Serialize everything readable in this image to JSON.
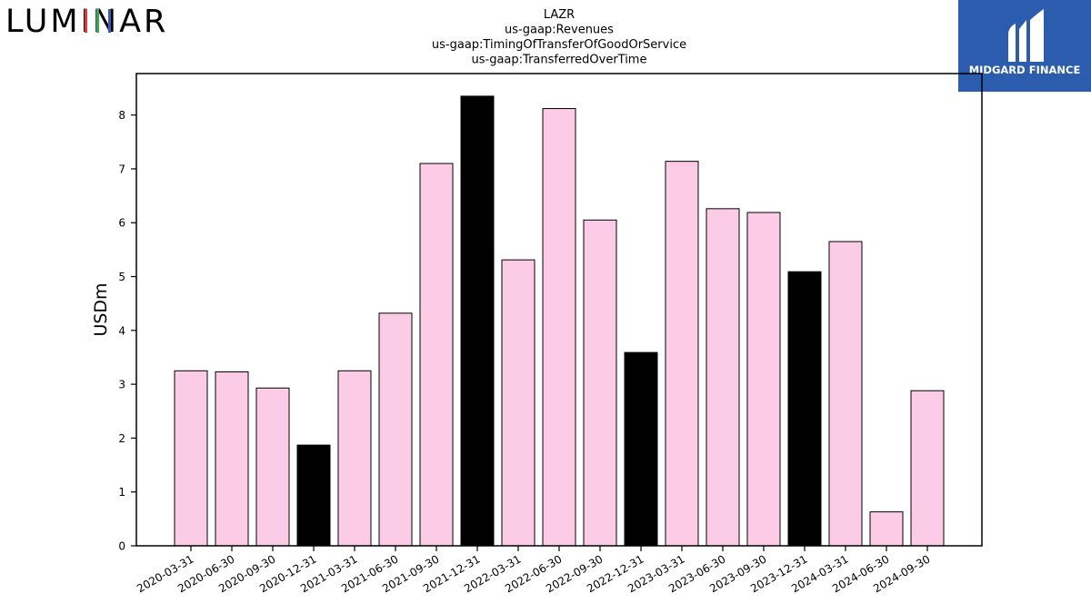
{
  "brand": {
    "left_logo_text": "LUMINAR",
    "right_logo_text": "MIDGARD FINANCE",
    "right_logo_bg": "#2b5cad"
  },
  "chart_data": {
    "type": "bar",
    "title": [
      "LAZR",
      "us-gaap:Revenues",
      "us-gaap:TimingOfTransferOfGoodOrService",
      "us-gaap:TransferredOverTime"
    ],
    "xlabel": "",
    "ylabel": "USDm",
    "ylim": [
      0,
      8.77
    ],
    "yticks": [
      0,
      1,
      2,
      3,
      4,
      5,
      6,
      7,
      8
    ],
    "categories": [
      "2020-03-31",
      "2020-06-30",
      "2020-09-30",
      "2020-12-31",
      "2021-03-31",
      "2021-06-30",
      "2021-09-30",
      "2021-12-31",
      "2022-03-31",
      "2022-06-30",
      "2022-09-30",
      "2022-12-31",
      "2023-03-31",
      "2023-06-30",
      "2023-09-30",
      "2023-12-31",
      "2024-03-31",
      "2024-06-30",
      "2024-09-30"
    ],
    "values": [
      3.25,
      3.23,
      2.93,
      1.87,
      3.25,
      4.32,
      7.1,
      8.35,
      5.31,
      8.12,
      6.05,
      3.59,
      7.14,
      6.26,
      6.19,
      5.09,
      5.65,
      0.63,
      2.88
    ],
    "bar_colors": [
      "#fccbe6",
      "#fccbe6",
      "#fccbe6",
      "#000000",
      "#fccbe6",
      "#fccbe6",
      "#fccbe6",
      "#000000",
      "#fccbe6",
      "#fccbe6",
      "#fccbe6",
      "#000000",
      "#fccbe6",
      "#fccbe6",
      "#fccbe6",
      "#000000",
      "#fccbe6",
      "#fccbe6",
      "#fccbe6"
    ],
    "grid": false,
    "legend": "none"
  }
}
